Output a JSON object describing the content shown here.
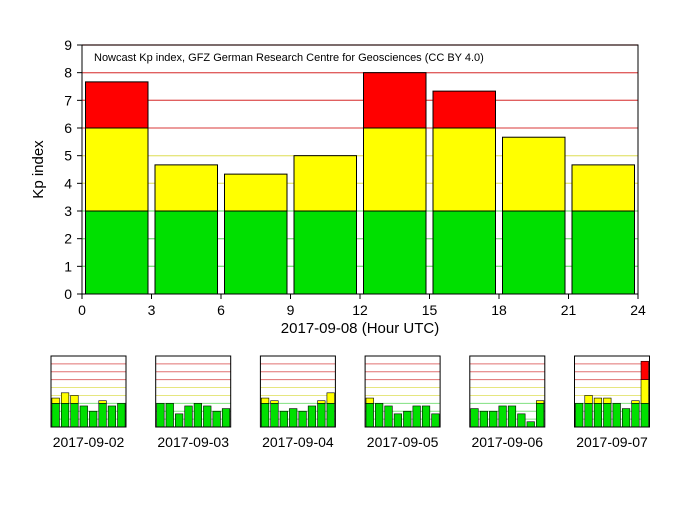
{
  "colors": {
    "green": "#00e000",
    "yellow": "#ffff00",
    "red": "#ff0000",
    "grid_green": "#80e080",
    "grid_yellow": "#e6e680",
    "grid_red": "#e06060",
    "mini_grid_red": "#e07070"
  },
  "chart_data": [
    {
      "type": "bar",
      "stacked_by_threshold": true,
      "title": "Nowcast Kp index, GFZ German Research Centre for Geosciences (CC BY 4.0)",
      "xlabel": "2017-09-08 (Hour UTC)",
      "ylabel": "Kp index",
      "xlim": [
        0,
        24
      ],
      "ylim": [
        0,
        9
      ],
      "x_ticks": [
        0,
        3,
        6,
        9,
        12,
        15,
        18,
        21,
        24
      ],
      "y_ticks": [
        0,
        1,
        2,
        3,
        4,
        5,
        6,
        7,
        8,
        9
      ],
      "thresholds": [
        3,
        6
      ],
      "bar_width_hours": 3,
      "x": [
        0,
        3,
        6,
        9,
        12,
        15,
        18,
        21
      ],
      "values": [
        7.667,
        4.667,
        4.333,
        5.0,
        8.0,
        7.333,
        5.667,
        4.667
      ]
    },
    {
      "type": "bar",
      "xlabel": "2017-09-02",
      "ylim": [
        0,
        9
      ],
      "x": [
        0,
        3,
        6,
        9,
        12,
        15,
        18,
        21
      ],
      "values": [
        3.667,
        4.333,
        4.0,
        2.667,
        2.0,
        3.333,
        2.667,
        3.0
      ]
    },
    {
      "type": "bar",
      "xlabel": "2017-09-03",
      "ylim": [
        0,
        9
      ],
      "x": [
        0,
        3,
        6,
        9,
        12,
        15,
        18,
        21
      ],
      "values": [
        3.0,
        3.0,
        1.667,
        2.667,
        3.0,
        2.667,
        2.0,
        2.333
      ]
    },
    {
      "type": "bar",
      "xlabel": "2017-09-04",
      "ylim": [
        0,
        9
      ],
      "x": [
        0,
        3,
        6,
        9,
        12,
        15,
        18,
        21
      ],
      "values": [
        3.667,
        3.333,
        2.0,
        2.333,
        2.0,
        2.667,
        3.333,
        4.333
      ]
    },
    {
      "type": "bar",
      "xlabel": "2017-09-05",
      "ylim": [
        0,
        9
      ],
      "x": [
        0,
        3,
        6,
        9,
        12,
        15,
        18,
        21
      ],
      "values": [
        3.667,
        3.0,
        2.667,
        1.667,
        2.0,
        2.667,
        2.667,
        1.667
      ]
    },
    {
      "type": "bar",
      "xlabel": "2017-09-06",
      "ylim": [
        0,
        9
      ],
      "x": [
        0,
        3,
        6,
        9,
        12,
        15,
        18,
        21
      ],
      "values": [
        2.333,
        2.0,
        2.0,
        2.667,
        2.667,
        1.667,
        0.667,
        3.333
      ]
    },
    {
      "type": "bar",
      "xlabel": "2017-09-07",
      "ylim": [
        0,
        9
      ],
      "x": [
        0,
        3,
        6,
        9,
        12,
        15,
        18,
        21
      ],
      "values": [
        3.0,
        4.0,
        3.667,
        3.667,
        3.0,
        2.333,
        3.333,
        8.333
      ]
    }
  ]
}
